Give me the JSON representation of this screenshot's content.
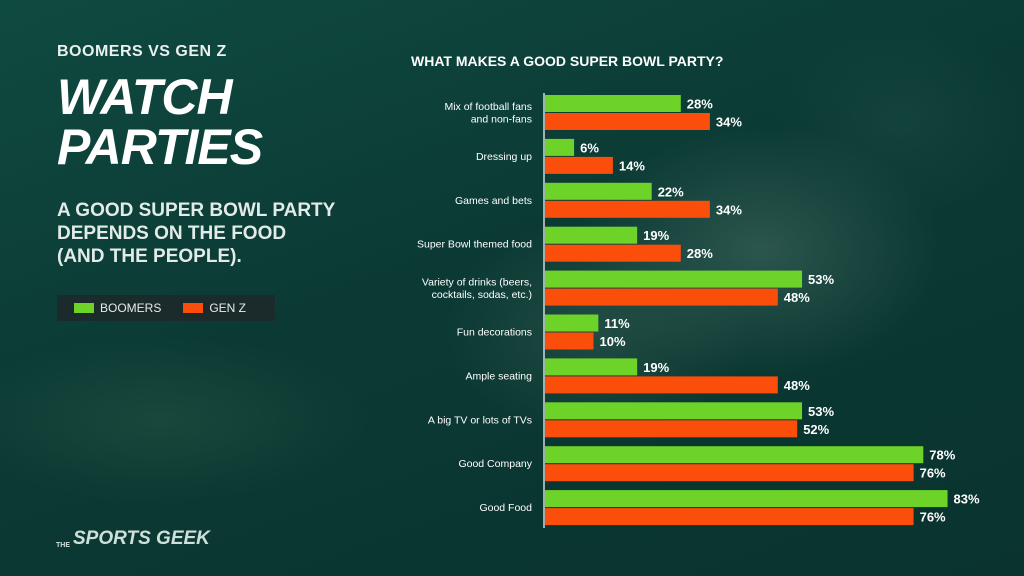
{
  "header": {
    "eyebrow": "BOOMERS VS GEN Z",
    "title_line1": "WATCH",
    "title_line2": "PARTIES",
    "tagline": "A GOOD SUPER BOWL PARTY DEPENDS ON THE FOOD (AND THE PEOPLE)."
  },
  "legend": {
    "items": [
      {
        "label": "BOOMERS",
        "color": "#6dd328"
      },
      {
        "label": "GEN Z",
        "color": "#fb4e0b"
      }
    ]
  },
  "brand": {
    "prefix": "THE",
    "name": "SPORTS GEEK"
  },
  "chart_data": {
    "type": "bar",
    "orientation": "horizontal",
    "title": "WHAT MAKES A GOOD SUPER BOWL PARTY?",
    "categories": [
      [
        "Mix of football fans",
        "and non-fans"
      ],
      [
        "Dressing up"
      ],
      [
        "Games and bets"
      ],
      [
        "Super Bowl themed food"
      ],
      [
        "Variety of drinks (beers,",
        "cocktails, sodas, etc.)"
      ],
      [
        "Fun decorations"
      ],
      [
        "Ample seating"
      ],
      [
        "A big TV or lots of TVs"
      ],
      [
        "Good Company"
      ],
      [
        "Good Food"
      ]
    ],
    "series": [
      {
        "name": "BOOMERS",
        "color": "#6dd328",
        "values": [
          28,
          6,
          22,
          19,
          53,
          11,
          19,
          53,
          78,
          83
        ]
      },
      {
        "name": "GEN Z",
        "color": "#fb4e0b",
        "values": [
          34,
          14,
          34,
          28,
          48,
          10,
          48,
          52,
          76,
          76
        ]
      }
    ],
    "value_suffix": "%",
    "xlim": [
      0,
      100
    ],
    "grid": false,
    "legend_position": "left"
  }
}
